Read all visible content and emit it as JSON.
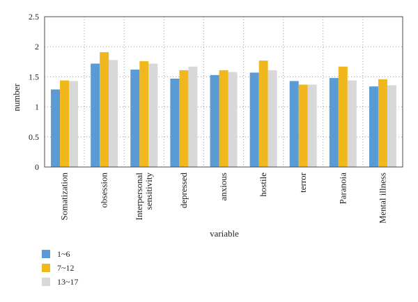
{
  "chart_data": {
    "type": "bar",
    "xlabel": "variable",
    "ylabel": "number",
    "ylim": [
      0,
      2.5
    ],
    "yticks": [
      "0",
      "0.5",
      "1",
      "1.5",
      "2",
      "2.5"
    ],
    "grid": true,
    "legend_placement": "bottom-left",
    "categories": [
      "Somatization",
      "obsession",
      "Interpersonal\nsensitivity",
      "depressed",
      "anxious",
      "hostile",
      "terror",
      "Paranoia",
      "Mental illness"
    ],
    "series": [
      {
        "name": "1~6",
        "color": "#5b9bd5",
        "values": [
          1.29,
          1.72,
          1.62,
          1.47,
          1.53,
          1.57,
          1.43,
          1.48,
          1.34
        ]
      },
      {
        "name": "7~12",
        "color": "#f0b81c",
        "values": [
          1.44,
          1.91,
          1.76,
          1.61,
          1.61,
          1.77,
          1.37,
          1.67,
          1.46
        ]
      },
      {
        "name": "13~17",
        "color": "#d8d8d8",
        "values": [
          1.43,
          1.78,
          1.72,
          1.67,
          1.58,
          1.61,
          1.37,
          1.44,
          1.36
        ]
      }
    ]
  }
}
